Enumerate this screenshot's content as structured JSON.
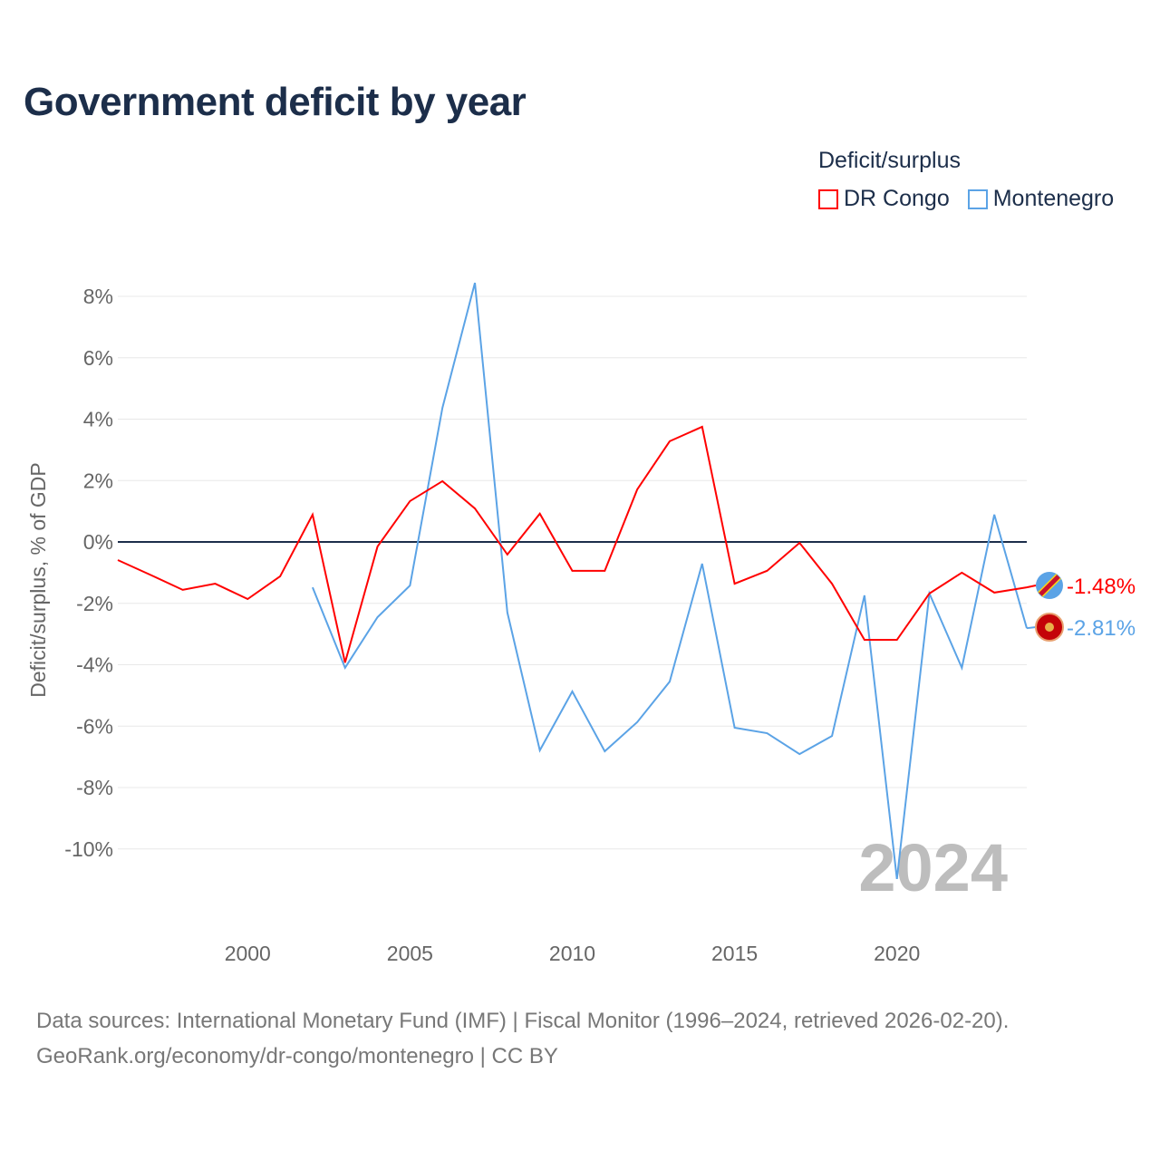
{
  "title": "Government deficit by year",
  "legend": {
    "title": "Deficit/surplus",
    "items": [
      {
        "label": "DR Congo",
        "color": "#ff0000"
      },
      {
        "label": "Montenegro",
        "color": "#5ba3e6"
      }
    ]
  },
  "watermark_year": "2024",
  "source": {
    "line1": "Data sources: International Monetary Fund (IMF) | Fiscal Monitor (1996–2024, retrieved 2026-02-20).",
    "line2": "GeoRank.org/economy/dr-congo/montenegro | CC BY"
  },
  "chart_data": {
    "type": "line",
    "title": "Government deficit by year",
    "xlabel": "",
    "ylabel": "Deficit/surplus, % of GDP",
    "xlim": [
      1996,
      2024
    ],
    "ylim": [
      -12,
      8.9
    ],
    "x_ticks": [
      2000,
      2005,
      2010,
      2015,
      2020
    ],
    "x_tick_labels": [
      "2000",
      "2005",
      "2010",
      "2015",
      "2020"
    ],
    "y_ticks": [
      8,
      6,
      4,
      2,
      0,
      -2,
      -4,
      -6,
      -8,
      -10
    ],
    "y_tick_labels": [
      "8%",
      "6%",
      "4%",
      "2%",
      "0%",
      "-2%",
      "-4%",
      "-6%",
      "-8%",
      "-10%"
    ],
    "grid": true,
    "legend_position": "top-right",
    "series": [
      {
        "name": "DR Congo",
        "color": "#ff0000",
        "end_label": "-1.48%",
        "x": [
          1996,
          1997,
          1998,
          1999,
          2000,
          2001,
          2002,
          2003,
          2004,
          2005,
          2006,
          2007,
          2008,
          2009,
          2010,
          2011,
          2012,
          2013,
          2014,
          2015,
          2016,
          2017,
          2018,
          2019,
          2020,
          2021,
          2022,
          2023,
          2024
        ],
        "values": [
          -0.59,
          -1.07,
          -1.56,
          -1.36,
          -1.86,
          -1.12,
          0.89,
          -3.93,
          -0.15,
          1.33,
          1.98,
          1.09,
          -0.41,
          0.92,
          -0.94,
          -0.94,
          1.71,
          3.28,
          3.75,
          -1.36,
          -0.94,
          -0.03,
          -1.36,
          -3.19,
          -3.19,
          -1.68,
          -1.0,
          -1.65,
          -1.48
        ]
      },
      {
        "name": "Montenegro",
        "color": "#5ba3e6",
        "end_label": "-2.81%",
        "x": [
          2002,
          2003,
          2004,
          2005,
          2006,
          2007,
          2008,
          2009,
          2010,
          2011,
          2012,
          2013,
          2014,
          2015,
          2016,
          2017,
          2018,
          2019,
          2020,
          2021,
          2022,
          2023,
          2024
        ],
        "values": [
          -1.48,
          -4.1,
          -2.45,
          -1.42,
          4.37,
          8.44,
          -2.3,
          -6.79,
          -4.87,
          -6.82,
          -5.87,
          -4.55,
          -0.71,
          -6.05,
          -6.23,
          -6.91,
          -6.32,
          -1.74,
          -10.98,
          -1.68,
          -4.1,
          0.89,
          -2.81
        ]
      }
    ]
  }
}
